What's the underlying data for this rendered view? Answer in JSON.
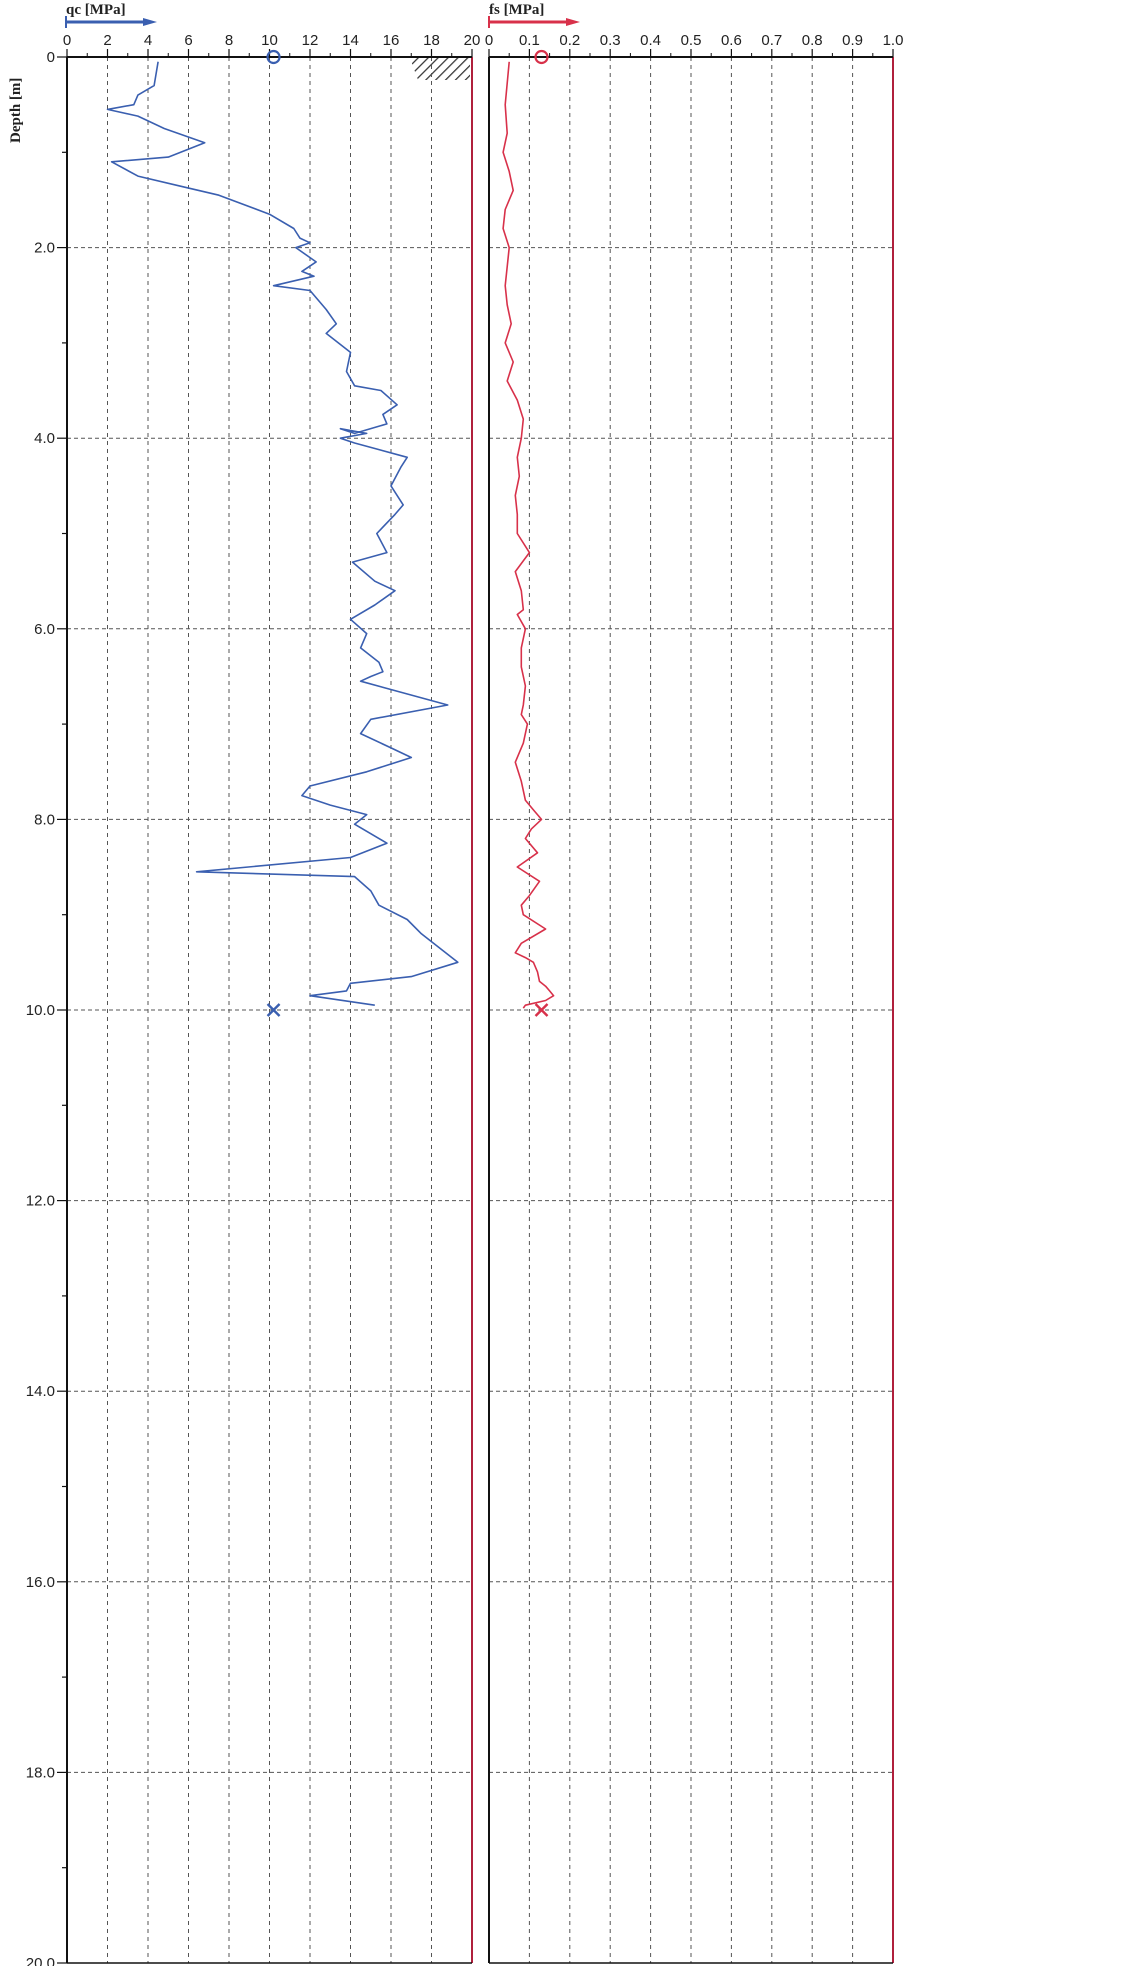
{
  "chart_data": [
    {
      "type": "line",
      "title": "",
      "xlabel": "qc [MPa]",
      "ylabel": "Depth [m]",
      "xlim": [
        0,
        20
      ],
      "ylim": [
        20,
        0
      ],
      "grid": true,
      "x_ticks": [
        "0",
        "2",
        "4",
        "6",
        "8",
        "10",
        "12",
        "14",
        "16",
        "18",
        "20"
      ],
      "y_ticks": [
        "0",
        "2.0",
        "4.0",
        "6.0",
        "8.0",
        "10.0",
        "12.0",
        "14.0",
        "16.0",
        "18.0",
        "20.0"
      ],
      "line_color": "#3a5fb0",
      "series": [
        {
          "x": [
            4.5,
            4.3,
            3.5,
            3.3,
            2.0,
            3.5,
            4.8,
            6.8,
            5.0,
            2.2,
            3.5,
            5.5,
            7.5,
            10.0,
            11.2,
            11.5,
            12.0,
            11.3,
            12.3,
            11.6,
            12.2,
            10.2,
            12.0,
            12.8,
            13.3,
            12.8,
            14.0,
            13.8,
            14.2,
            15.5,
            16.3,
            15.6,
            15.8,
            14.2,
            13.5,
            14.8,
            13.5,
            14.2,
            16.8,
            16.5,
            16.0,
            16.6,
            16.2,
            15.3,
            15.8,
            14.1,
            15.2,
            16.2,
            15.2,
            14.0,
            14.8,
            14.5,
            15.4,
            15.6,
            15.0,
            14.5,
            18.8,
            15.0,
            14.5,
            16.0,
            17.0,
            14.8,
            12.0,
            11.6,
            13.0,
            14.8,
            14.2,
            15.8,
            14.0,
            6.4,
            14.2,
            15.0,
            15.4,
            16.8,
            17.5,
            19.3,
            17.0,
            14.0,
            13.8,
            12.0,
            15.2
          ],
          "y": [
            0.05,
            0.3,
            0.4,
            0.5,
            0.55,
            0.62,
            0.75,
            0.9,
            1.05,
            1.1,
            1.25,
            1.35,
            1.45,
            1.65,
            1.8,
            1.9,
            1.95,
            2.0,
            2.15,
            2.25,
            2.3,
            2.4,
            2.45,
            2.65,
            2.8,
            2.9,
            3.1,
            3.3,
            3.45,
            3.5,
            3.65,
            3.75,
            3.85,
            3.95,
            3.9,
            3.95,
            4.0,
            4.05,
            4.2,
            4.3,
            4.5,
            4.7,
            4.8,
            5.0,
            5.2,
            5.3,
            5.5,
            5.6,
            5.75,
            5.9,
            6.05,
            6.2,
            6.35,
            6.45,
            6.5,
            6.55,
            6.8,
            6.95,
            7.1,
            7.25,
            7.35,
            7.5,
            7.65,
            7.75,
            7.85,
            7.95,
            8.05,
            8.25,
            8.4,
            8.55,
            8.6,
            8.75,
            8.9,
            9.05,
            9.2,
            9.5,
            9.65,
            9.72,
            9.8,
            9.85,
            9.95
          ]
        }
      ],
      "start_marker": {
        "x": 10.2,
        "y": 0,
        "symbol": "circle"
      },
      "end_marker": {
        "x": 10.2,
        "y": 10.0,
        "symbol": "cross"
      }
    },
    {
      "type": "line",
      "title": "",
      "xlabel": "fs [MPa]",
      "xlim": [
        0,
        1.0
      ],
      "ylim": [
        20,
        0
      ],
      "grid": true,
      "x_ticks": [
        "0",
        "0.1",
        "0.2",
        "0.3",
        "0.4",
        "0.5",
        "0.6",
        "0.7",
        "0.8",
        "0.9",
        "1.0"
      ],
      "line_color": "#d8314a",
      "series": [
        {
          "x": [
            0.05,
            0.04,
            0.045,
            0.035,
            0.05,
            0.06,
            0.04,
            0.035,
            0.05,
            0.045,
            0.04,
            0.045,
            0.055,
            0.04,
            0.06,
            0.045,
            0.07,
            0.085,
            0.08,
            0.07,
            0.075,
            0.065,
            0.07,
            0.07,
            0.1,
            0.065,
            0.08,
            0.085,
            0.07,
            0.09,
            0.08,
            0.08,
            0.09,
            0.085,
            0.08,
            0.095,
            0.085,
            0.065,
            0.08,
            0.09,
            0.11,
            0.13,
            0.105,
            0.09,
            0.12,
            0.07,
            0.125,
            0.1,
            0.08,
            0.085,
            0.14,
            0.08,
            0.065,
            0.09,
            0.11,
            0.12,
            0.125,
            0.14,
            0.15,
            0.16,
            0.14,
            0.09,
            0.085
          ],
          "y": [
            0.05,
            0.5,
            0.8,
            1.0,
            1.2,
            1.4,
            1.6,
            1.8,
            2.0,
            2.2,
            2.4,
            2.6,
            2.8,
            3.0,
            3.2,
            3.4,
            3.6,
            3.8,
            4.0,
            4.2,
            4.4,
            4.6,
            4.8,
            5.0,
            5.2,
            5.4,
            5.6,
            5.8,
            5.85,
            6.0,
            6.2,
            6.4,
            6.6,
            6.8,
            6.9,
            7.0,
            7.2,
            7.4,
            7.6,
            7.8,
            7.9,
            8.0,
            8.1,
            8.2,
            8.35,
            8.5,
            8.65,
            8.8,
            8.9,
            9.0,
            9.15,
            9.3,
            9.4,
            9.45,
            9.5,
            9.6,
            9.7,
            9.75,
            9.8,
            9.85,
            9.9,
            9.95,
            9.98
          ]
        }
      ],
      "start_marker": {
        "x": 0.13,
        "y": 0,
        "symbol": "circle"
      },
      "end_marker": {
        "x": 0.13,
        "y": 10.0,
        "symbol": "cross"
      }
    }
  ],
  "colors": {
    "frame_left": "#222222",
    "frame_right_edge": "#b0203c",
    "grid": "#555555"
  }
}
